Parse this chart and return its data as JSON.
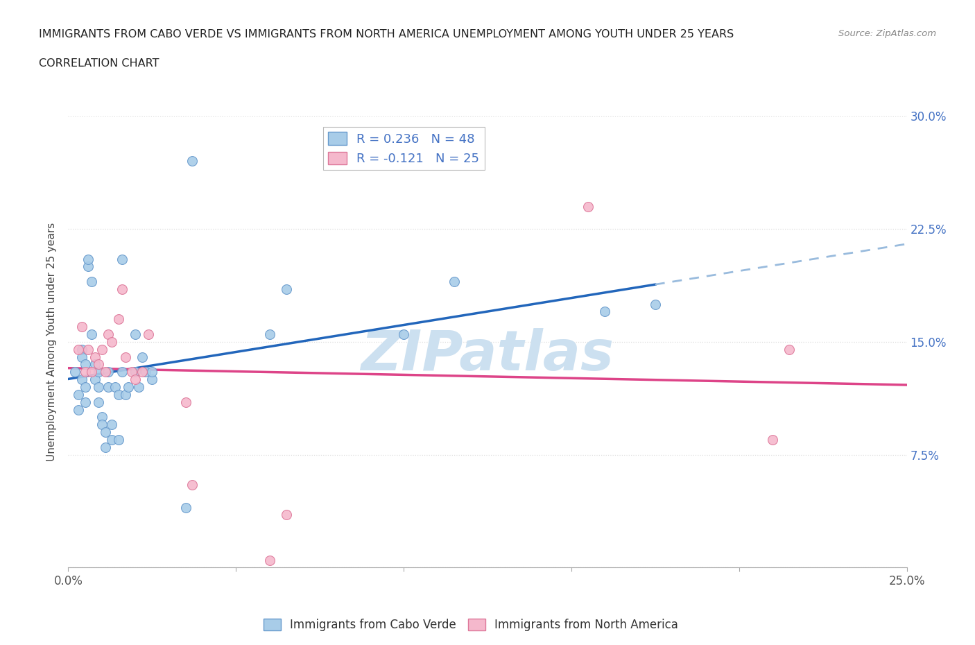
{
  "title_line1": "IMMIGRANTS FROM CABO VERDE VS IMMIGRANTS FROM NORTH AMERICA UNEMPLOYMENT AMONG YOUTH UNDER 25 YEARS",
  "title_line2": "CORRELATION CHART",
  "source": "Source: ZipAtlas.com",
  "ylabel": "Unemployment Among Youth under 25 years",
  "legend_label1": "Immigrants from Cabo Verde",
  "legend_label2": "Immigrants from North America",
  "R1": 0.236,
  "N1": 48,
  "R2": -0.121,
  "N2": 25,
  "xlim": [
    0.0,
    0.25
  ],
  "ylim": [
    0.0,
    0.3
  ],
  "xticks": [
    0.0,
    0.05,
    0.1,
    0.15,
    0.2,
    0.25
  ],
  "xtick_labels": [
    "0.0%",
    "",
    "",
    "",
    "",
    "25.0%"
  ],
  "yticks": [
    0.0,
    0.075,
    0.15,
    0.225,
    0.3
  ],
  "ytick_labels_right": [
    "",
    "7.5%",
    "15.0%",
    "22.5%",
    "30.0%"
  ],
  "color_blue": "#a8cce8",
  "color_blue_edge": "#6699cc",
  "color_blue_line": "#2266bb",
  "color_blue_dash": "#99bbdd",
  "color_pink": "#f5b8cc",
  "color_pink_edge": "#dd7799",
  "color_pink_line": "#dd4488",
  "color_watermark": "#cce0f0",
  "background_color": "#ffffff",
  "grid_color": "#dddddd",
  "cabo_verde_x": [
    0.002,
    0.003,
    0.003,
    0.004,
    0.004,
    0.004,
    0.005,
    0.005,
    0.005,
    0.006,
    0.006,
    0.007,
    0.007,
    0.008,
    0.008,
    0.009,
    0.009,
    0.009,
    0.01,
    0.01,
    0.011,
    0.011,
    0.012,
    0.012,
    0.013,
    0.013,
    0.014,
    0.015,
    0.015,
    0.016,
    0.016,
    0.017,
    0.018,
    0.02,
    0.021,
    0.023,
    0.025,
    0.035,
    0.037,
    0.06,
    0.065,
    0.1,
    0.115,
    0.16,
    0.175,
    0.02,
    0.022,
    0.025
  ],
  "cabo_verde_y": [
    0.13,
    0.115,
    0.105,
    0.145,
    0.14,
    0.125,
    0.135,
    0.12,
    0.11,
    0.2,
    0.205,
    0.19,
    0.155,
    0.135,
    0.125,
    0.13,
    0.12,
    0.11,
    0.1,
    0.095,
    0.09,
    0.08,
    0.13,
    0.12,
    0.095,
    0.085,
    0.12,
    0.115,
    0.085,
    0.205,
    0.13,
    0.115,
    0.12,
    0.13,
    0.12,
    0.13,
    0.125,
    0.04,
    0.27,
    0.155,
    0.185,
    0.155,
    0.19,
    0.17,
    0.175,
    0.155,
    0.14,
    0.13
  ],
  "north_america_x": [
    0.003,
    0.004,
    0.005,
    0.006,
    0.007,
    0.008,
    0.009,
    0.01,
    0.011,
    0.012,
    0.013,
    0.015,
    0.016,
    0.017,
    0.019,
    0.02,
    0.022,
    0.024,
    0.035,
    0.037,
    0.06,
    0.065,
    0.155,
    0.21,
    0.215
  ],
  "north_america_y": [
    0.145,
    0.16,
    0.13,
    0.145,
    0.13,
    0.14,
    0.135,
    0.145,
    0.13,
    0.155,
    0.15,
    0.165,
    0.185,
    0.14,
    0.13,
    0.125,
    0.13,
    0.155,
    0.11,
    0.055,
    0.005,
    0.035,
    0.24,
    0.085,
    0.145
  ]
}
